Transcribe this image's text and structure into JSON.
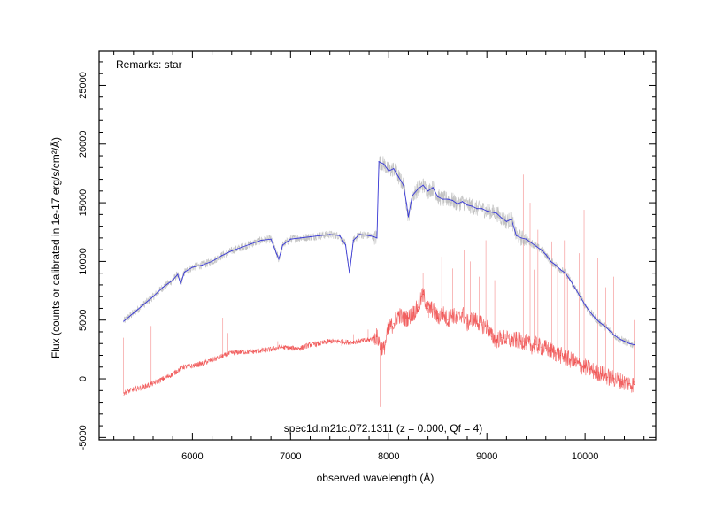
{
  "chart_data": {
    "type": "line",
    "xlabel": "observed wavelength (Å)",
    "ylabel": "Flux (counts or calibrated in 1e-17 erg/s/cm²/Å)",
    "remarks": "Remarks: star",
    "caption": "spec1d.m21c.072.1311 (z = 0.000, Qf = 4)",
    "xlim": [
      5050,
      10720
    ],
    "ylim": [
      -5200,
      27900
    ],
    "x_ticks": [
      6000,
      7000,
      8000,
      9000,
      10000
    ],
    "y_ticks": [
      -5000,
      0,
      5000,
      10000,
      15000,
      20000,
      25000
    ],
    "grid": false,
    "colors": {
      "raw": "#b4b4b4",
      "smoothed": "#3a3ad8",
      "error": "#ee3a3a"
    },
    "series": [
      {
        "key": "smoothed",
        "x": [
          5300,
          5400,
          5500,
          5600,
          5700,
          5800,
          5850,
          5880,
          5920,
          6000,
          6100,
          6200,
          6300,
          6400,
          6500,
          6600,
          6700,
          6800,
          6860,
          6880,
          6920,
          7000,
          7100,
          7200,
          7300,
          7400,
          7500,
          7560,
          7600,
          7640,
          7700,
          7800,
          7850,
          7880,
          7900,
          7950,
          8000,
          8050,
          8100,
          8150,
          8180,
          8200,
          8240,
          8300,
          8350,
          8400,
          8450,
          8500,
          8550,
          8600,
          8650,
          8700,
          8750,
          8800,
          8850,
          8900,
          8950,
          9000,
          9050,
          9100,
          9150,
          9200,
          9250,
          9300,
          9350,
          9400,
          9450,
          9500,
          9550,
          9600,
          9650,
          9700,
          9750,
          9800,
          9850,
          9900,
          9950,
          10000,
          10050,
          10100,
          10150,
          10200,
          10250,
          10300,
          10350,
          10400,
          10450,
          10500
        ],
        "y": [
          4900,
          5600,
          6300,
          7000,
          7800,
          8400,
          8900,
          8100,
          9100,
          9500,
          9700,
          10000,
          10500,
          10900,
          11200,
          11500,
          11800,
          11900,
          10600,
          10200,
          11400,
          11900,
          12000,
          12100,
          12200,
          12300,
          12200,
          11400,
          9000,
          11800,
          12300,
          12200,
          12100,
          12000,
          18500,
          18300,
          17700,
          17900,
          17200,
          16500,
          15000,
          13800,
          15600,
          16200,
          16500,
          16000,
          16300,
          15500,
          15300,
          15300,
          15200,
          14900,
          15100,
          14800,
          14700,
          14500,
          14500,
          14300,
          14200,
          14100,
          13700,
          13400,
          13600,
          12200,
          12000,
          11900,
          11600,
          11300,
          11000,
          10600,
          10000,
          9700,
          9300,
          9000,
          8400,
          7700,
          7000,
          6300,
          5700,
          5200,
          4800,
          4500,
          4100,
          3700,
          3400,
          3200,
          3000,
          2900
        ]
      },
      {
        "key": "error",
        "x": [
          5300,
          5400,
          5500,
          5600,
          5700,
          5800,
          5900,
          6000,
          6100,
          6200,
          6300,
          6400,
          6500,
          6600,
          6700,
          6800,
          6900,
          7000,
          7100,
          7200,
          7300,
          7400,
          7500,
          7600,
          7700,
          7800,
          7850,
          7880,
          7920,
          7950,
          8000,
          8050,
          8100,
          8150,
          8200,
          8250,
          8300,
          8350,
          8400,
          8450,
          8500,
          8550,
          8600,
          8650,
          8700,
          8750,
          8800,
          8850,
          8900,
          8950,
          9000,
          9050,
          9100,
          9150,
          9200,
          9250,
          9300,
          9350,
          9400,
          9450,
          9500,
          9550,
          9600,
          9650,
          9700,
          9750,
          9800,
          9850,
          9900,
          9950,
          10000,
          10050,
          10100,
          10150,
          10200,
          10250,
          10300,
          10350,
          10400,
          10450,
          10500
        ],
        "y": [
          -1200,
          -900,
          -700,
          -400,
          0,
          400,
          1000,
          1100,
          1300,
          1600,
          1900,
          2200,
          2300,
          2300,
          2400,
          2500,
          2700,
          2600,
          2600,
          2900,
          3000,
          3200,
          3200,
          3100,
          3200,
          3300,
          3500,
          3600,
          2800,
          2500,
          4300,
          4700,
          5500,
          5100,
          5200,
          5600,
          6100,
          7200,
          6000,
          5900,
          5200,
          5600,
          5000,
          5500,
          5000,
          5600,
          4700,
          5100,
          4900,
          4600,
          4400,
          3600,
          3300,
          3500,
          3400,
          3200,
          3300,
          3200,
          3100,
          2800,
          2900,
          2700,
          2600,
          2400,
          2200,
          2000,
          1800,
          1600,
          1400,
          1100,
          1000,
          800,
          600,
          500,
          300,
          100,
          0,
          -100,
          -300,
          -400,
          -500
        ]
      }
    ]
  }
}
